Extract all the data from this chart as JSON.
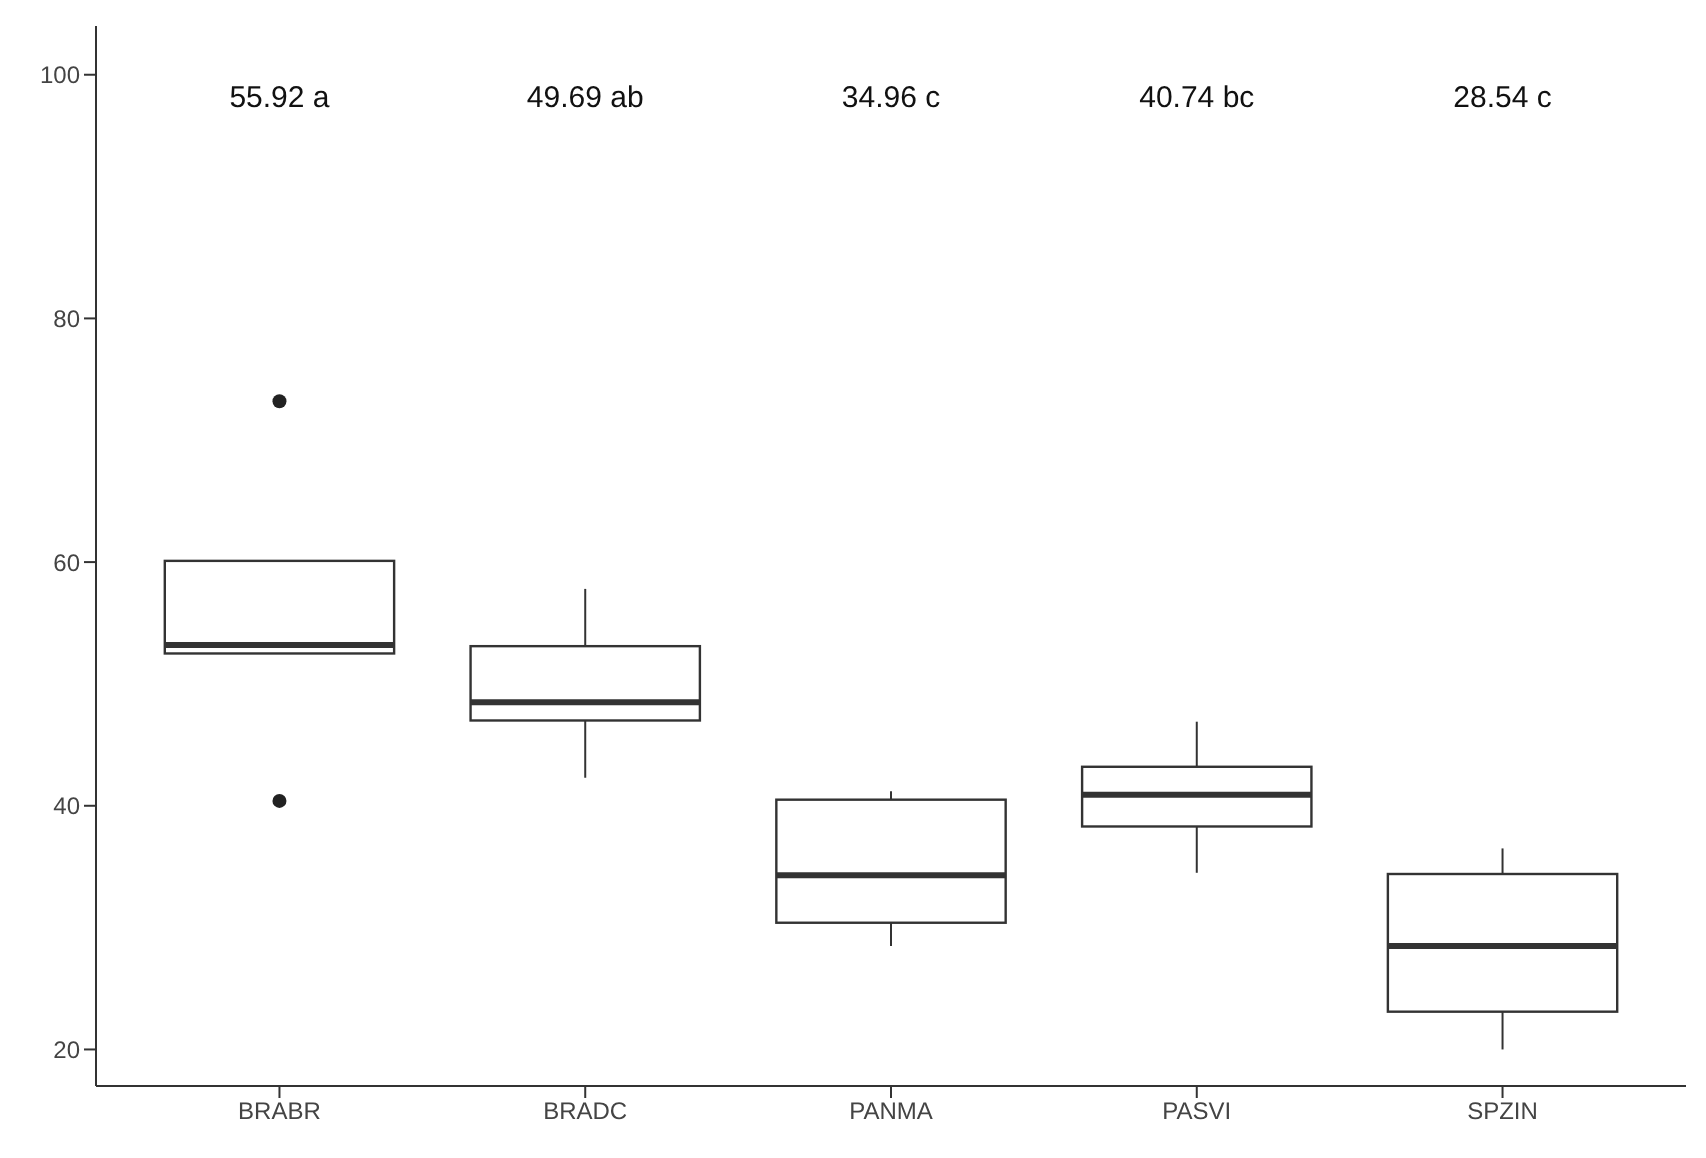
{
  "chart_data": {
    "type": "box",
    "categories": [
      "BRABR",
      "BRADC",
      "PANMA",
      "PASVI",
      "SPZIN"
    ],
    "boxes": [
      {
        "low": 52.5,
        "q1": 52.5,
        "median": 53.2,
        "q3": 60.1,
        "high": 60.1,
        "outliers": [
          73.2,
          40.4
        ]
      },
      {
        "low": 42.3,
        "q1": 47.0,
        "median": 48.5,
        "q3": 53.1,
        "high": 57.8
      },
      {
        "low": 28.5,
        "q1": 30.4,
        "median": 34.3,
        "q3": 40.5,
        "high": 41.2
      },
      {
        "low": 34.5,
        "q1": 38.3,
        "median": 40.9,
        "q3": 43.2,
        "high": 46.9
      },
      {
        "low": 20.0,
        "q1": 23.1,
        "median": 28.5,
        "q3": 34.4,
        "high": 36.5
      }
    ],
    "ylim": [
      17,
      104
    ],
    "yticks": [
      20,
      40,
      60,
      80,
      100
    ],
    "grid": false,
    "annotations": [
      "55.92 a",
      "49.69 ab",
      "34.96 c",
      "40.74 bc",
      "28.54 c"
    ]
  }
}
